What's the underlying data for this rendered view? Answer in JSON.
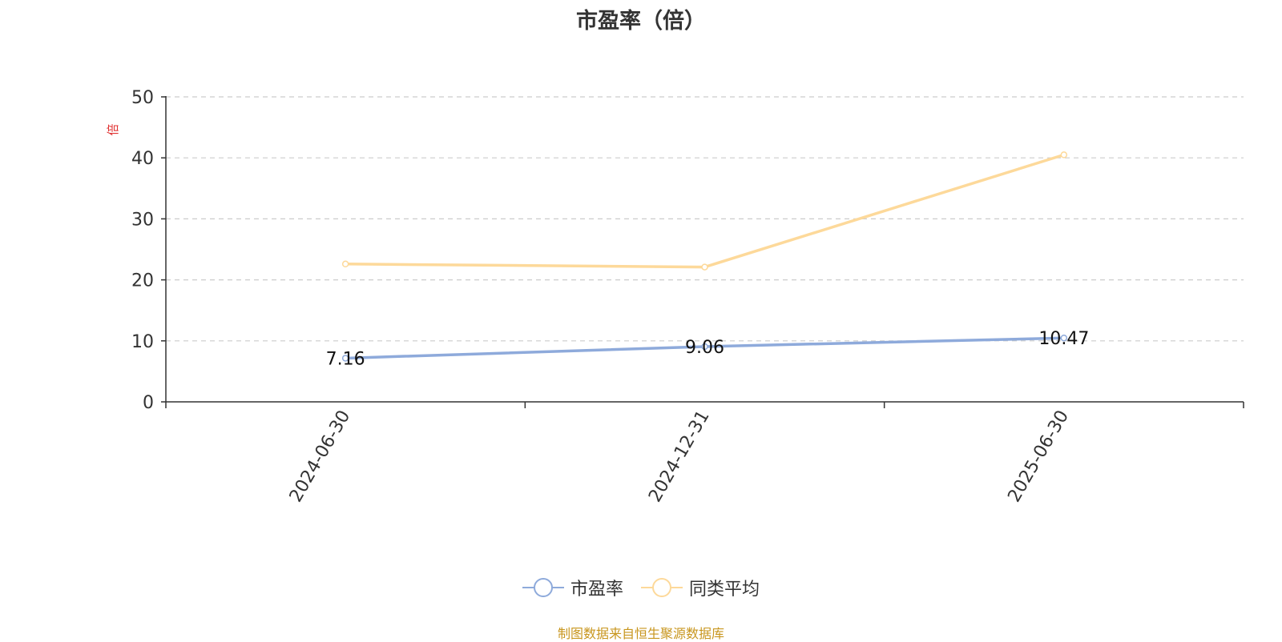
{
  "chart_data": {
    "type": "line",
    "title": "市盈率（倍）",
    "ylabel": "倍",
    "xlabel": "",
    "categories": [
      "2024-06-30",
      "2024-12-31",
      "2025-06-30"
    ],
    "ylim": [
      0,
      50
    ],
    "yticks": [
      0,
      10,
      20,
      30,
      40,
      50
    ],
    "grid": true,
    "legend_position": "bottom",
    "series": [
      {
        "name": "市盈率",
        "values": [
          7.16,
          9.06,
          10.47
        ],
        "color": "#8eaadb",
        "labels": [
          "7.16",
          "9.06",
          "10.47"
        ]
      },
      {
        "name": "同类平均",
        "values": [
          22.6,
          22.1,
          40.5
        ],
        "color": "#fdd99a"
      }
    ]
  },
  "footer": {
    "source": "制图数据来自恒生聚源数据库"
  }
}
